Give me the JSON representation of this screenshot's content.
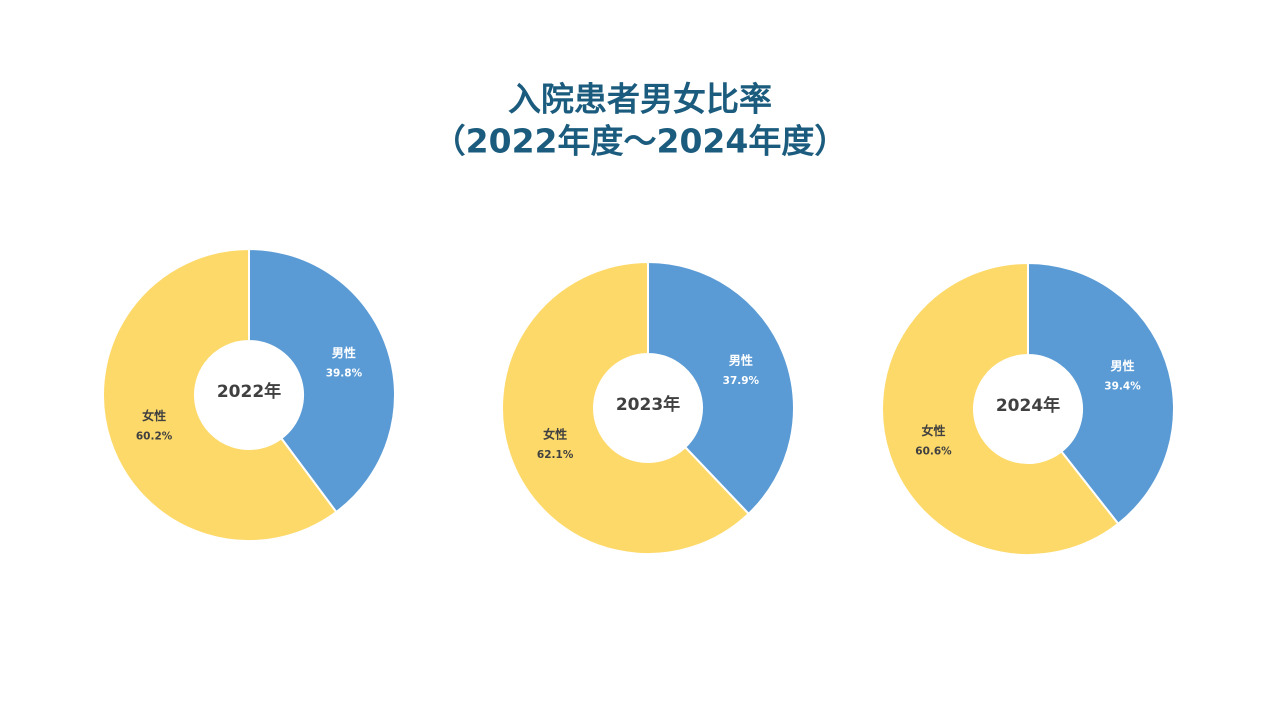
{
  "title_lines": [
    "入院患者男女比率",
    "（2022年度～2024年度）"
  ],
  "chart_data": [
    {
      "type": "donut",
      "center_label": "2022年",
      "categories": [
        "男性",
        "女性"
      ],
      "values": [
        39.8,
        60.2
      ],
      "value_labels": [
        "39.8%",
        "60.2%"
      ],
      "colors": [
        "#5b9bd5",
        "#fdd969"
      ]
    },
    {
      "type": "donut",
      "center_label": "2023年",
      "categories": [
        "男性",
        "女性"
      ],
      "values": [
        37.9,
        62.1
      ],
      "value_labels": [
        "37.9%",
        "62.1%"
      ],
      "colors": [
        "#5b9bd5",
        "#fdd969"
      ]
    },
    {
      "type": "donut",
      "center_label": "2024年",
      "categories": [
        "男性",
        "女性"
      ],
      "values": [
        39.4,
        60.6
      ],
      "value_labels": [
        "39.4%",
        "60.6%"
      ],
      "colors": [
        "#5b9bd5",
        "#fdd969"
      ]
    }
  ]
}
